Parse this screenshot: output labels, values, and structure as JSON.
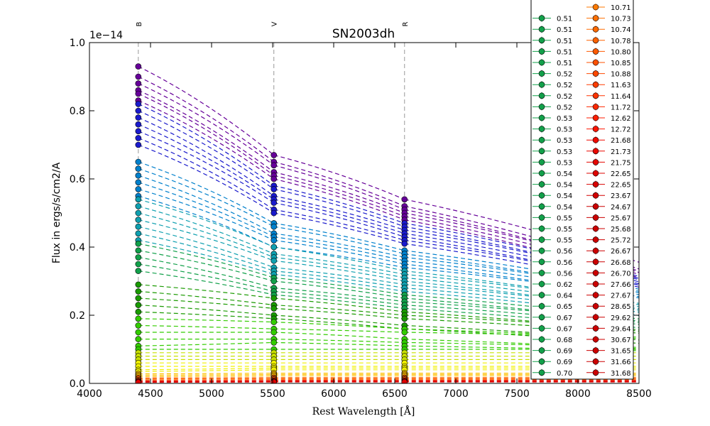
{
  "chart_data": {
    "type": "line",
    "title": "SN2003dh",
    "xlabel": "Rest Wavelength [Å]",
    "ylabel": "Flux in ergs/s/cm2/A",
    "yscale_label": "1e−14",
    "xlim": [
      4000,
      8500
    ],
    "ylim": [
      0.0,
      1.0
    ],
    "xticks": [
      "4000",
      "4500",
      "5000",
      "5500",
      "6000",
      "6500",
      "7000",
      "7500",
      "8000",
      "8500"
    ],
    "yticks": [
      "0.0",
      "0.2",
      "0.4",
      "0.6",
      "0.8",
      "1.0"
    ],
    "bands": [
      {
        "name": "B",
        "wavelength": 4400
      },
      {
        "name": "V",
        "wavelength": 5510
      },
      {
        "name": "R",
        "wavelength": 6580
      }
    ],
    "grid": false,
    "legend_position": "upper-right",
    "legend_col1": [
      "0.51",
      "0.51",
      "0.51",
      "0.51",
      "0.51",
      "0.52",
      "0.52",
      "0.52",
      "0.52",
      "0.53",
      "0.53",
      "0.53",
      "0.53",
      "0.53",
      "0.54",
      "0.54",
      "0.54",
      "0.54",
      "0.55",
      "0.55",
      "0.55",
      "0.56",
      "0.56",
      "0.56",
      "0.62",
      "0.64",
      "0.65",
      "0.67",
      "0.67",
      "0.68",
      "0.69",
      "0.69",
      "0.70"
    ],
    "legend_col2": [
      "10.71",
      "10.73",
      "10.74",
      "10.78",
      "10.80",
      "10.85",
      "10.88",
      "11.63",
      "11.64",
      "11.72",
      "12.62",
      "12.72",
      "21.68",
      "21.73",
      "21.75",
      "22.65",
      "22.65",
      "23.67",
      "24.67",
      "25.67",
      "25.68",
      "25.72",
      "26.67",
      "26.68",
      "26.70",
      "27.66",
      "27.67",
      "28.65",
      "29.62",
      "29.64",
      "30.67",
      "31.65",
      "31.66",
      "31.68"
    ],
    "legend_col1_colors": [
      "#12a04a",
      "#12a04a",
      "#12a04a",
      "#12a04a",
      "#12a04a",
      "#12a04a",
      "#12a04a",
      "#12a04a",
      "#12a04a",
      "#12a04a",
      "#12a04a",
      "#12a04a",
      "#12a04a",
      "#12a04a",
      "#12a04a",
      "#12a04a",
      "#12a04a",
      "#12a04a",
      "#12a04a",
      "#12a04a",
      "#12a04a",
      "#12a04a",
      "#12a04a",
      "#12a04a",
      "#12a04a",
      "#12a04a",
      "#12a04a",
      "#12a04a",
      "#12a04a",
      "#12a04a",
      "#12a04a",
      "#12a04a",
      "#12a04a"
    ],
    "legend_col2_colors": [
      "#ff7a00",
      "#ff7000",
      "#ff6a00",
      "#ff6200",
      "#ff5a00",
      "#ff5000",
      "#ff4800",
      "#ff3c00",
      "#ff3400",
      "#ff2800",
      "#ff1e00",
      "#ff1400",
      "#f00a00",
      "#ea0800",
      "#e40600",
      "#de0400",
      "#d80200",
      "#d20000",
      "#cc0000",
      "#cc0000",
      "#cc0000",
      "#cc0000",
      "#cc0000",
      "#cc0000",
      "#cc0000",
      "#cc0000",
      "#cc0000",
      "#cc0000",
      "#cc0000",
      "#cc0000",
      "#cc0000",
      "#cc0000",
      "#cc0000",
      "#cc0000"
    ],
    "series_groups": [
      {
        "color": "#660099",
        "B": [
          0.93,
          0.9,
          0.88,
          0.86,
          0.85,
          0.83
        ],
        "V": [
          0.67,
          0.65,
          0.64,
          0.62,
          0.61,
          0.6
        ],
        "R": [
          0.54,
          0.52,
          0.51,
          0.5,
          0.49,
          0.48
        ]
      },
      {
        "color": "#1a1acc",
        "B": [
          0.82,
          0.8,
          0.78,
          0.76,
          0.74,
          0.72,
          0.7
        ],
        "V": [
          0.58,
          0.57,
          0.55,
          0.54,
          0.53,
          0.51,
          0.5
        ],
        "R": [
          0.47,
          0.46,
          0.45,
          0.44,
          0.43,
          0.42,
          0.41
        ]
      },
      {
        "color": "#0080cc",
        "B": [
          0.65,
          0.63,
          0.61,
          0.59,
          0.57,
          0.55
        ],
        "V": [
          0.47,
          0.46,
          0.44,
          0.43,
          0.42,
          0.4
        ],
        "R": [
          0.39,
          0.38,
          0.37,
          0.36,
          0.35,
          0.34
        ]
      },
      {
        "color": "#10a0b0",
        "B": [
          0.54,
          0.52,
          0.5,
          0.48,
          0.46,
          0.44,
          0.42
        ],
        "V": [
          0.4,
          0.38,
          0.37,
          0.36,
          0.34,
          0.33,
          0.32
        ],
        "R": [
          0.33,
          0.32,
          0.31,
          0.3,
          0.29,
          0.28,
          0.27
        ]
      },
      {
        "color": "#11a04a",
        "B": [
          0.41,
          0.39,
          0.37,
          0.35,
          0.33
        ],
        "V": [
          0.31,
          0.3,
          0.28,
          0.27,
          0.26
        ],
        "R": [
          0.26,
          0.25,
          0.24,
          0.23,
          0.22
        ]
      },
      {
        "color": "#1a9a00",
        "B": [
          0.29,
          0.27,
          0.25,
          0.23,
          0.21
        ],
        "V": [
          0.25,
          0.23,
          0.22,
          0.2,
          0.19
        ],
        "R": [
          0.21,
          0.2,
          0.19,
          0.17,
          0.16
        ]
      },
      {
        "color": "#33cc00",
        "B": [
          0.19,
          0.17,
          0.15,
          0.13,
          0.11,
          0.1
        ],
        "V": [
          0.18,
          0.16,
          0.15,
          0.13,
          0.12,
          0.1
        ],
        "R": [
          0.16,
          0.15,
          0.13,
          0.12,
          0.11,
          0.1
        ]
      },
      {
        "color": "#c8e000",
        "B": [
          0.09,
          0.08,
          0.07
        ],
        "V": [
          0.09,
          0.08,
          0.07
        ],
        "R": [
          0.09,
          0.08,
          0.07
        ]
      },
      {
        "color": "#f0f000",
        "B": [
          0.06,
          0.05,
          0.04,
          0.035
        ],
        "V": [
          0.06,
          0.05,
          0.045,
          0.04
        ],
        "R": [
          0.06,
          0.05,
          0.045,
          0.04
        ]
      },
      {
        "color": "#ffc000",
        "B": [
          0.028,
          0.024,
          0.02
        ],
        "V": [
          0.03,
          0.026,
          0.022
        ],
        "R": [
          0.03,
          0.026,
          0.022
        ]
      },
      {
        "color": "#ff6000",
        "B": [
          0.016,
          0.013,
          0.01
        ],
        "V": [
          0.017,
          0.014,
          0.011
        ],
        "R": [
          0.017,
          0.014,
          0.011
        ]
      },
      {
        "color": "#e00000",
        "B": [
          0.007,
          0.005,
          0.003
        ],
        "V": [
          0.008,
          0.006,
          0.004
        ],
        "R": [
          0.008,
          0.006,
          0.004
        ]
      }
    ]
  }
}
